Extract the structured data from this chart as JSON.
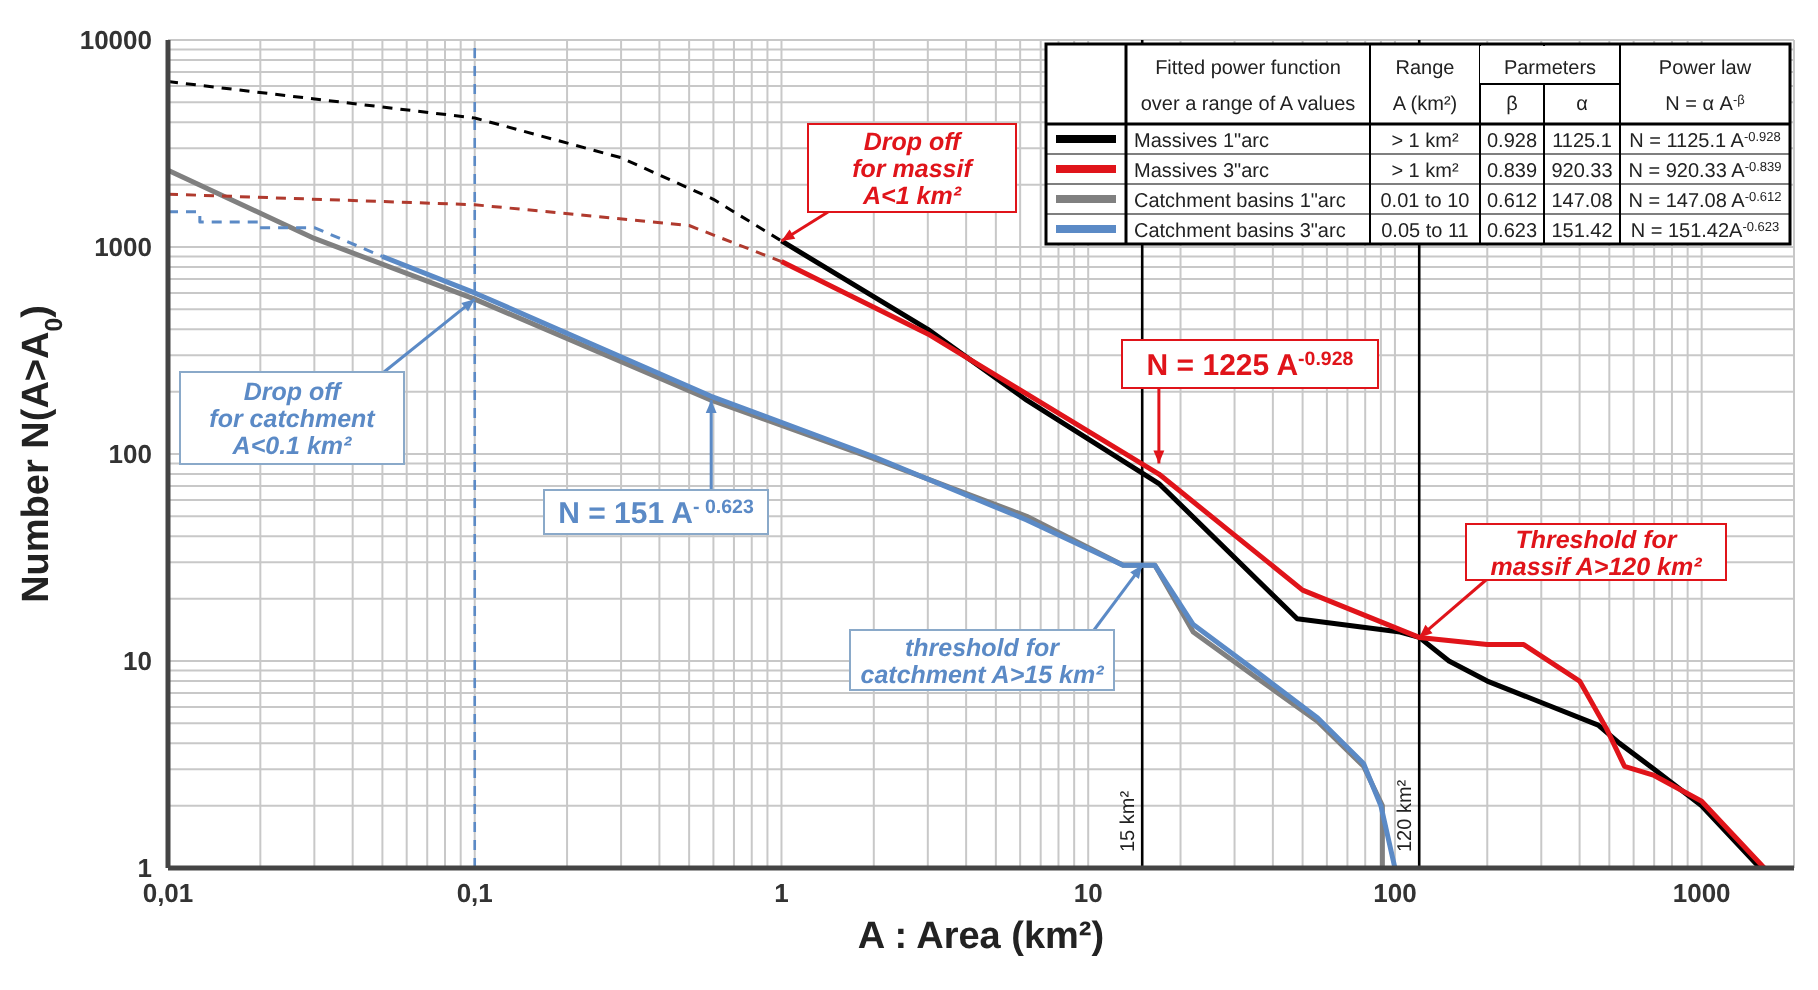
{
  "chart_data": {
    "type": "line",
    "xlabel": "A : Area (km²)",
    "ylabel": "Number N(A>A$_{0}$)",
    "log": "xy",
    "grid": true,
    "legend": "top right",
    "line_style": "solid",
    "marker": "none",
    "xlim": [
      0.01,
      2000
    ],
    "ylim": [
      1,
      10000
    ],
    "xticks": [
      {
        "value": 0.01,
        "label": "0,01"
      },
      {
        "value": 0.02,
        "label": null
      },
      {
        "value": 0.03,
        "label": null
      },
      {
        "value": 0.04,
        "label": null
      },
      {
        "value": 0.05,
        "label": null
      },
      {
        "value": 0.06,
        "label": null
      },
      {
        "value": 0.07,
        "label": null
      },
      {
        "value": 0.08,
        "label": null
      },
      {
        "value": 0.09,
        "label": null
      },
      {
        "value": 0.1,
        "label": "0,1"
      },
      {
        "value": 0.2,
        "label": null
      },
      {
        "value": 0.3,
        "label": null
      },
      {
        "value": 0.4,
        "label": null
      },
      {
        "value": 0.5,
        "label": null
      },
      {
        "value": 0.6,
        "label": null
      },
      {
        "value": 0.7,
        "label": null
      },
      {
        "value": 0.8,
        "label": null
      },
      {
        "value": 0.9,
        "label": null
      },
      1,
      {
        "value": 2,
        "label": null
      },
      {
        "value": 3,
        "label": null
      },
      {
        "value": 4,
        "label": null
      },
      {
        "value": 5,
        "label": null
      },
      {
        "value": 6,
        "label": null
      },
      {
        "value": 7,
        "label": null
      },
      {
        "value": 8,
        "label": null
      },
      {
        "value": 9,
        "label": null
      },
      10,
      {
        "value": 20,
        "label": null
      },
      {
        "value": 30,
        "label": null
      },
      {
        "value": 40,
        "label": null
      },
      {
        "value": 50,
        "label": null
      },
      {
        "value": 60,
        "label": null
      },
      {
        "value": 70,
        "label": null
      },
      {
        "value": 80,
        "label": null
      },
      {
        "value": 90,
        "label": null
      },
      100,
      {
        "value": 200,
        "label": null
      },
      {
        "value": 300,
        "label": null
      },
      {
        "value": 400,
        "label": null
      },
      {
        "value": 500,
        "label": null
      },
      {
        "value": 600,
        "label": null
      },
      {
        "value": 700,
        "label": null
      },
      {
        "value": 800,
        "label": null
      },
      {
        "value": 900,
        "label": null
      },
      1000
    ],
    "yticks": [
      1,
      {
        "value": 2,
        "label": null
      },
      {
        "value": 3,
        "label": null
      },
      {
        "value": 4,
        "label": null
      },
      {
        "value": 5,
        "label": null
      },
      {
        "value": 6,
        "label": null
      },
      {
        "value": 7,
        "label": null
      },
      {
        "value": 8,
        "label": null
      },
      {
        "value": 9,
        "label": null
      },
      10,
      {
        "value": 20,
        "label": null
      },
      {
        "value": 30,
        "label": null
      },
      {
        "value": 40,
        "label": null
      },
      {
        "value": 50,
        "label": null
      },
      {
        "value": 60,
        "label": null
      },
      {
        "value": 70,
        "label": null
      },
      {
        "value": 80,
        "label": null
      },
      {
        "value": 90,
        "label": null
      },
      100,
      {
        "value": 200,
        "label": null
      },
      {
        "value": 300,
        "label": null
      },
      {
        "value": 400,
        "label": null
      },
      {
        "value": 500,
        "label": null
      },
      {
        "value": 600,
        "label": null
      },
      {
        "value": 700,
        "label": null
      },
      {
        "value": 800,
        "label": null
      },
      {
        "value": 900,
        "label": null
      },
      1000,
      {
        "value": 2000,
        "label": null
      },
      {
        "value": 3000,
        "label": null
      },
      {
        "value": 4000,
        "label": null
      },
      {
        "value": 5000,
        "label": null
      },
      {
        "value": 6000,
        "label": null
      },
      {
        "value": 7000,
        "label": null
      },
      {
        "value": 8000,
        "label": null
      },
      {
        "value": 9000,
        "label": null
      },
      10000
    ],
    "series": [
      {
        "name": "Massives 1\"arc",
        "color": "#000000",
        "x": [
          1,
          3,
          6.3,
          17,
          48,
          104,
          120,
          150,
          200,
          300,
          460,
          540,
          700,
          1000,
          1550
        ],
        "values": [
          1070,
          400,
          182,
          72,
          16,
          13.8,
          13,
          10,
          8,
          6.3,
          4.9,
          4,
          3,
          2,
          1
        ]
      },
      {
        "name": "Massives 3\"arc",
        "color": "#e0141a",
        "x": [
          1,
          3,
          6.3,
          17,
          50,
          120,
          200,
          263,
          400,
          490,
          560,
          700,
          1000,
          1600
        ],
        "values": [
          850,
          380,
          195,
          80,
          22,
          13,
          12,
          12,
          8,
          4.7,
          3.1,
          2.8,
          2.1,
          1
        ]
      },
      {
        "name": "Catchment basins 1\"arc",
        "color": "#808080",
        "x": [
          0.01,
          0.03,
          0.1,
          0.59,
          2,
          6.3,
          13,
          16.5,
          22,
          35,
          56,
          79,
          91,
          91
        ],
        "values": [
          2350,
          1100,
          560,
          182,
          95,
          50,
          29,
          29,
          13.8,
          8.4,
          5.1,
          3.1,
          2,
          1
        ]
      },
      {
        "name": "Catchment basins 3\"arc",
        "color": "#5b8ac6",
        "x": [
          0.05,
          0.1,
          0.59,
          2,
          6.3,
          13,
          16.5,
          22,
          35,
          56,
          79,
          90,
          100
        ],
        "values": [
          900,
          600,
          190,
          97,
          48,
          29,
          29,
          15,
          9,
          5.3,
          3.2,
          2,
          1
        ]
      },
      {
        "color": "#5b8ac6",
        "line_style": "dashed",
        "x": [
          0.01,
          0.0127,
          0.0127,
          0.0198,
          0.0198,
          0.03,
          0.05
        ],
        "values": [
          1480,
          1480,
          1320,
          1320,
          1240,
          1240,
          900
        ]
      },
      {
        "color": "#000000",
        "line_style": "dashed",
        "x": [
          0.01,
          0.1,
          0.3,
          0.6,
          1
        ],
        "values": [
          6300,
          4200,
          2700,
          1700,
          1070
        ]
      },
      {
        "color": "#b03a2e",
        "line_style": "dashed",
        "x": [
          0.01,
          0.1,
          0.5,
          1
        ],
        "values": [
          1800,
          1600,
          1270,
          850
        ]
      }
    ],
    "ref_lines": [
      {
        "axis": "x",
        "value": 0.1,
        "color": "#5b8ac6",
        "line_style": "dashed"
      },
      {
        "axis": "x",
        "value": 15,
        "label": "15 km²",
        "color": "#000000"
      },
      {
        "axis": "x",
        "value": 120,
        "label": "120 km²",
        "color": "#000000"
      }
    ],
    "annotations": [
      {
        "text": "Drop off\nfor massif\nA<1 km²",
        "x": 1,
        "y": 1070
      },
      {
        "text": "N = 1225 A$^{-0.928}$",
        "x": 17,
        "y": 90
      },
      {
        "text": "Threshold for\nmassif A>120 km²",
        "x": 120,
        "y": 13
      },
      {
        "text": "Drop off\nfor catchment\nA<0.1 km²",
        "x": 0.1,
        "y": 560
      },
      {
        "text": "N = 151 A$^{- 0.623}$",
        "x": 0.59,
        "y": 182
      },
      {
        "text": "threshold for\ncatchment A>15 km²",
        "x": 15,
        "y": 29
      },
      "Fitted power function\nover a range of A values",
      "Range\nA (km²)",
      "Parmeters",
      "β",
      "α",
      "Power law\nN = α A$^{-β}$",
      "> 1 km²",
      "0.928",
      "1125.1",
      "N = 1125.1 A$^{-0.928}$",
      "> 1 km²",
      "0.839",
      "920.33",
      "N = 920.33 A$^{-0.839}$",
      "0.01 to 10",
      "0.612",
      "147.08",
      "N = 147.08 A$^{-0.612}$",
      "0.05 to 11",
      "0.623",
      "151.42",
      "N = 151.42A$^{-0.623}$"
    ]
  }
}
